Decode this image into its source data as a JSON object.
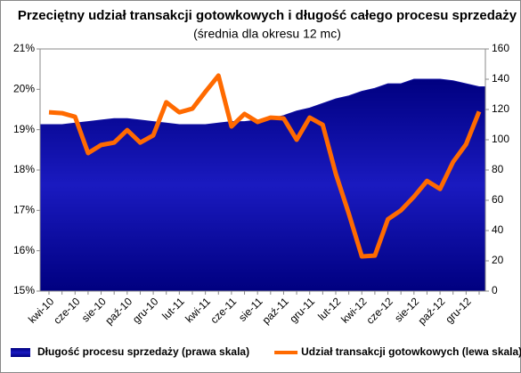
{
  "chart_data": {
    "type": "area_line",
    "title": "Przeciętny udział transakcji gotowkowych i długość całego procesu sprzedaży",
    "subtitle": "(średnia dla okresu 12 mc)",
    "categories": [
      "kwi-10",
      null,
      "cze-10",
      null,
      "sie-10",
      null,
      "paź-10",
      null,
      "gru-10",
      null,
      "lut-11",
      null,
      "kwi-11",
      null,
      "cze-11",
      null,
      "sie-11",
      null,
      "paź-11",
      null,
      "gru-11",
      null,
      "lut-12",
      null,
      "kwi-12",
      null,
      "cze-12",
      null,
      "sie-12",
      null,
      "paź-12",
      null,
      "gru-12",
      null
    ],
    "series": [
      {
        "name": "Długość procesu sprzedaży (prawa skala)",
        "color": "#1010a0",
        "axis": "y2",
        "kind": "area",
        "values": [
          110,
          110,
          111,
          112,
          113,
          114,
          114,
          113,
          112,
          111,
          110,
          110,
          110,
          111,
          112,
          112,
          113,
          114,
          116,
          119,
          121,
          124,
          127,
          129,
          132,
          134,
          137,
          137,
          140,
          140,
          140,
          139,
          137,
          135
        ]
      },
      {
        "name": "Udział transakcji gotowkowych (lewa skala)",
        "color": "#ff6a00",
        "axis": "y",
        "kind": "line",
        "values": [
          19.43,
          19.41,
          19.32,
          18.42,
          18.62,
          18.68,
          18.99,
          18.68,
          18.86,
          19.68,
          19.43,
          19.52,
          19.94,
          20.34,
          19.08,
          19.39,
          19.19,
          19.3,
          19.28,
          18.75,
          19.3,
          19.12,
          17.91,
          16.92,
          15.86,
          15.88,
          16.78,
          17.0,
          17.34,
          17.73,
          17.53,
          18.2,
          18.64,
          19.45
        ]
      }
    ],
    "ylim": [
      15,
      21
    ],
    "yticks": [
      {
        "value": 15,
        "label": "15%"
      },
      {
        "value": 16,
        "label": "16%"
      },
      {
        "value": 17,
        "label": "17%"
      },
      {
        "value": 18,
        "label": "18%"
      },
      {
        "value": 19,
        "label": "19%"
      },
      {
        "value": 20,
        "label": "20%"
      },
      {
        "value": 21,
        "label": "21%"
      }
    ],
    "y2lim": [
      0,
      160
    ],
    "y2ticks": [
      0,
      20,
      40,
      60,
      80,
      100,
      120,
      140,
      160
    ],
    "legend": "bottom"
  }
}
